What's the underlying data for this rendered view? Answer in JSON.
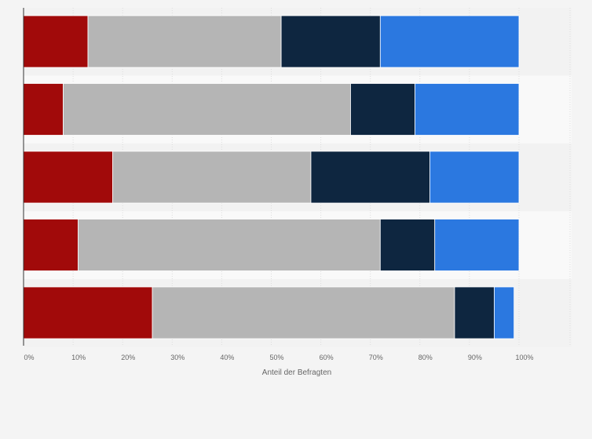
{
  "chart_data": {
    "type": "bar",
    "orientation": "horizontal",
    "stacked": true,
    "categories": [
      "",
      "",
      "",
      "",
      ""
    ],
    "series": [
      {
        "color": "#a10a0a",
        "values": [
          13,
          8,
          18,
          11,
          26
        ]
      },
      {
        "color": "#b5b5b5",
        "values": [
          39,
          58,
          40,
          61,
          61
        ]
      },
      {
        "color": "#0e2640",
        "values": [
          20,
          13,
          24,
          11,
          8
        ]
      },
      {
        "color": "#2b78e0",
        "values": [
          28,
          21,
          18,
          17,
          4
        ]
      }
    ],
    "xlim": [
      0,
      100
    ],
    "x_ticks": [
      "0%",
      "10%",
      "20%",
      "30%",
      "40%",
      "50%",
      "60%",
      "70%",
      "80%",
      "90%",
      "100%"
    ],
    "xlabel": "Anteil der Befragten",
    "ylabel": "",
    "title": "",
    "grid": true,
    "legend": "none"
  }
}
